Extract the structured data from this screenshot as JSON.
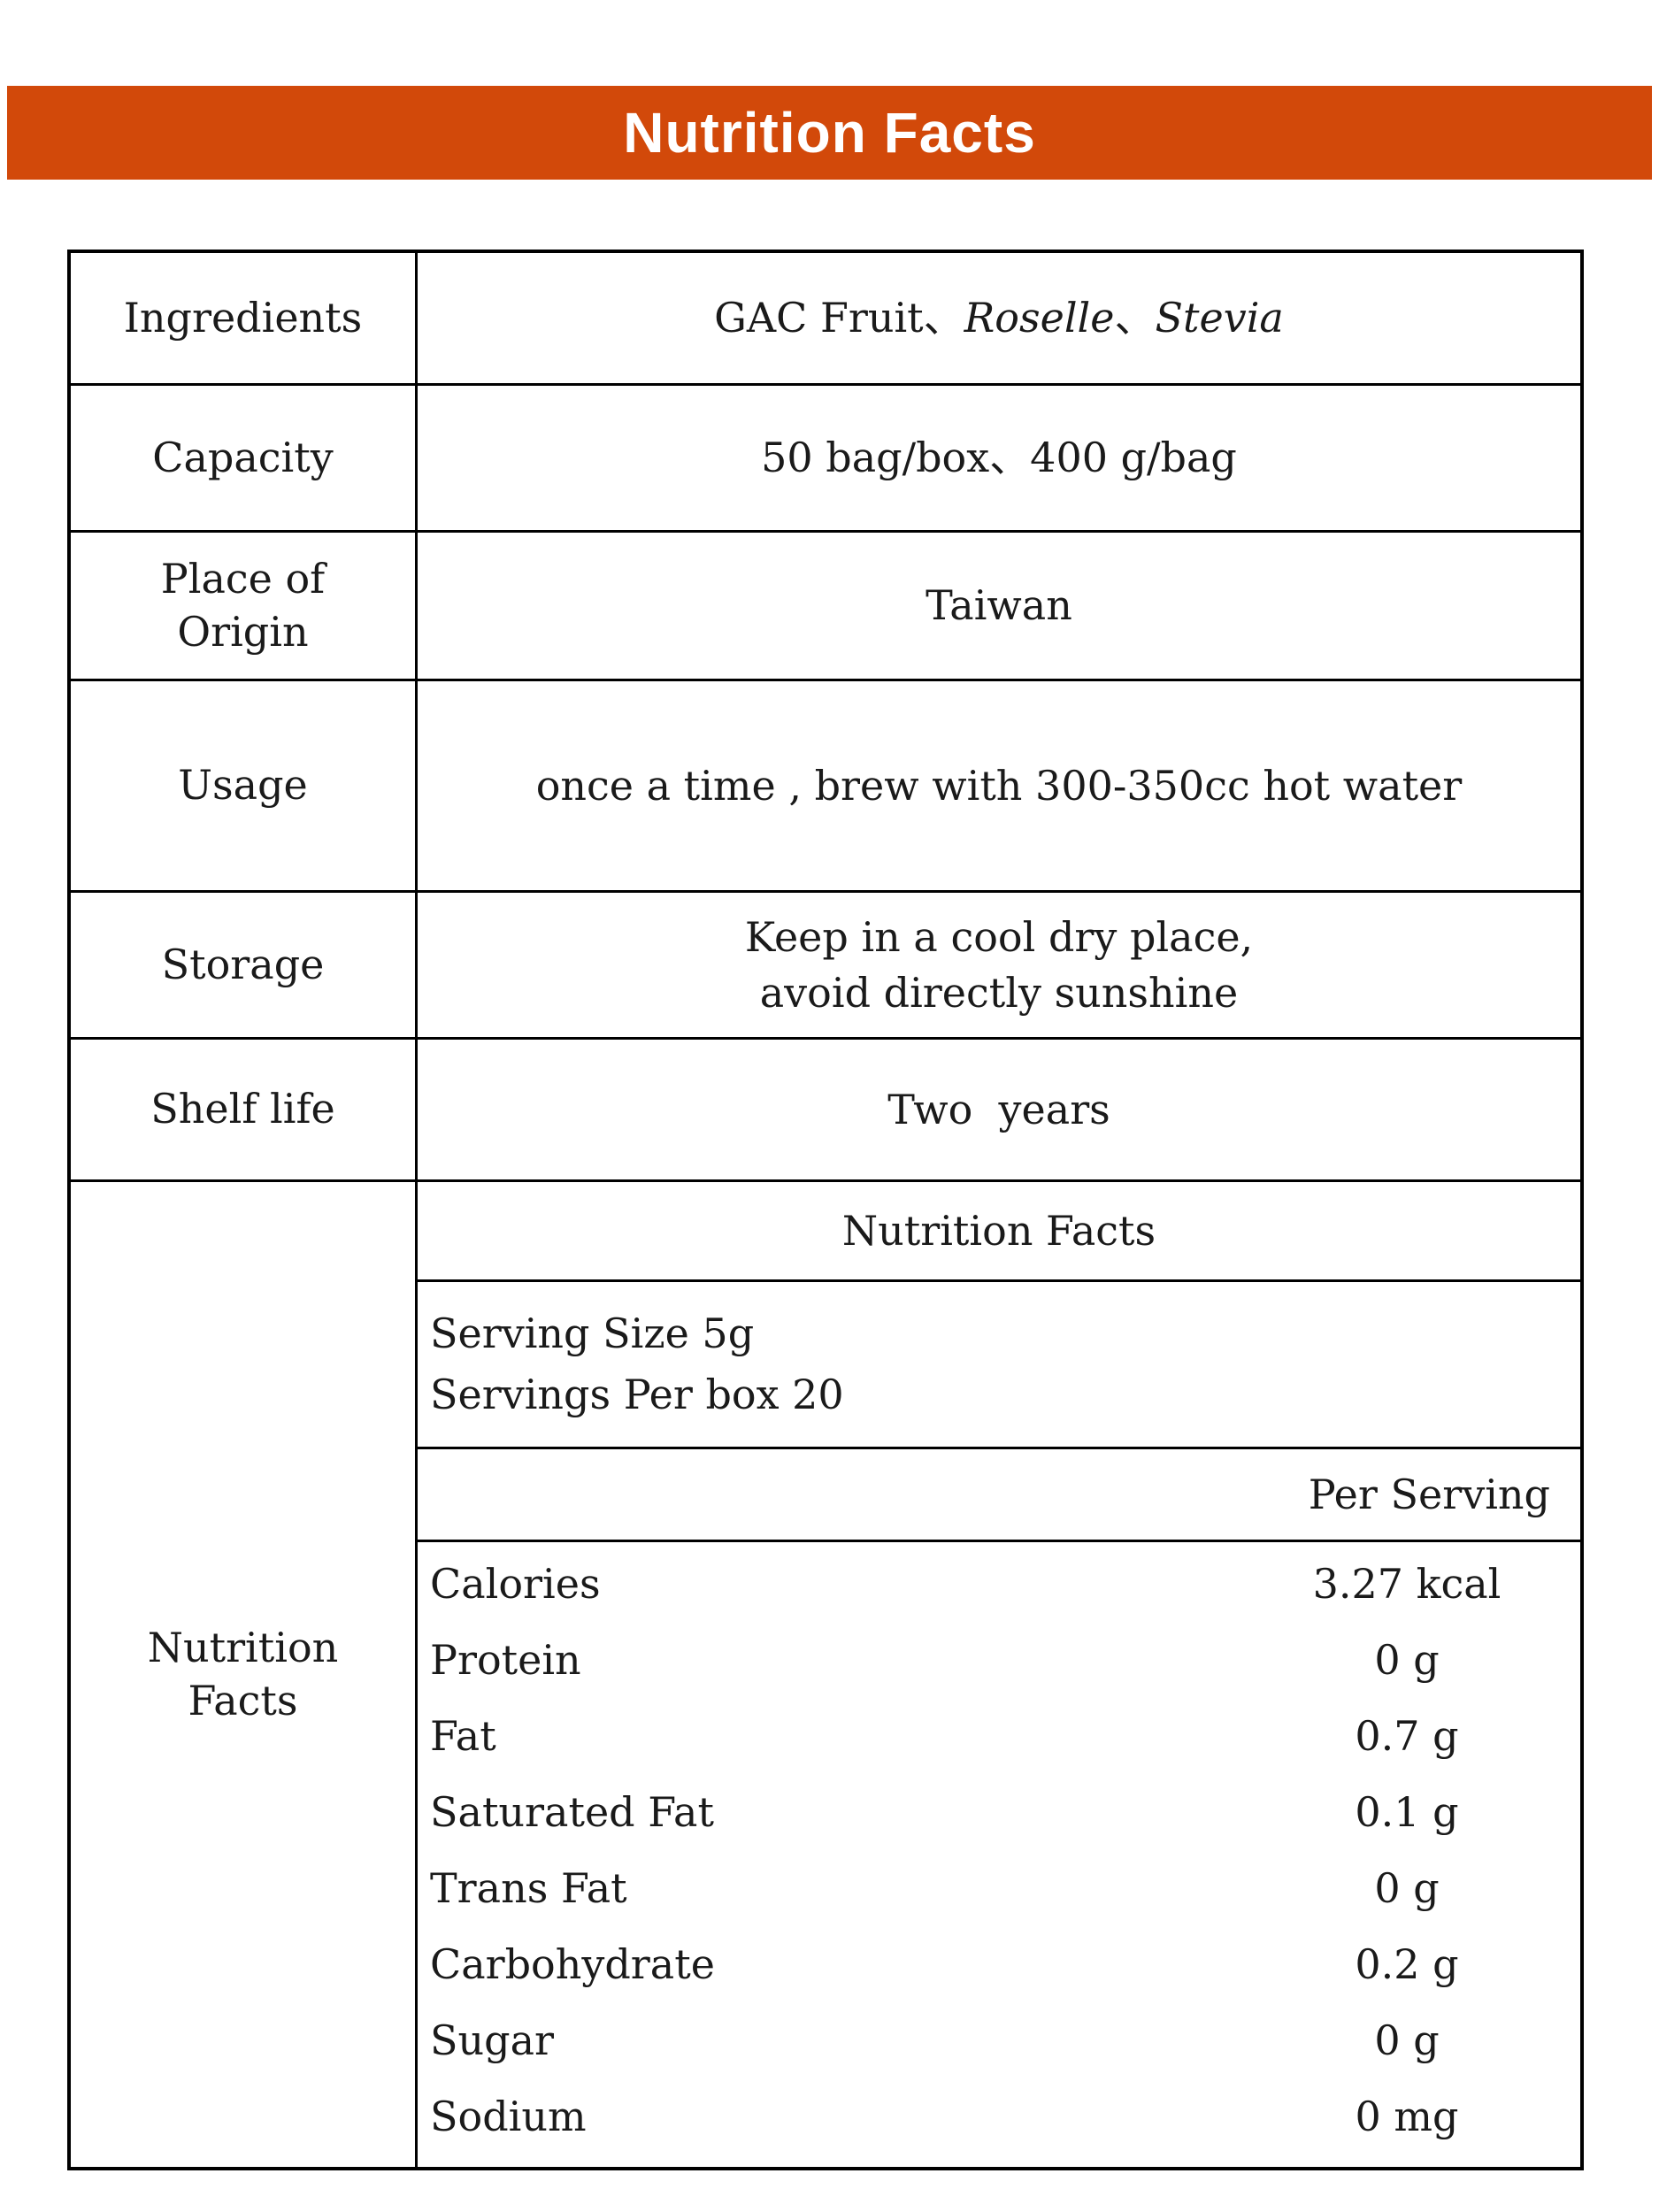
{
  "banner": {
    "title": "Nutrition Facts",
    "bg_color": "#d2490a",
    "text_color": "#ffffff"
  },
  "table": {
    "rows": [
      {
        "label": "Ingredients"
      },
      {
        "label": "Capacity",
        "value": "50 bag/box、400 g/bag"
      },
      {
        "label": "Place of Origin",
        "value": "Taiwan"
      },
      {
        "label": "Usage",
        "value": "once a time , brew with 300-350cc hot water"
      },
      {
        "label": "Storage",
        "value_line1": "Keep in a cool dry place,",
        "value_line2": "avoid directly sunshine"
      },
      {
        "label": "Shelf life",
        "value": "Two  years"
      },
      {
        "label": "Nutrition Facts"
      }
    ],
    "ingredients_parts": [
      {
        "text": "GAC Fruit、",
        "italic": false
      },
      {
        "text": "Roselle",
        "italic": true
      },
      {
        "text": "、",
        "italic": false
      },
      {
        "text": "Stevia",
        "italic": true
      }
    ]
  },
  "nutrition_panel": {
    "title": "Nutrition Facts",
    "serving_size": "Serving Size 5g",
    "servings_per_box": "Servings Per box 20",
    "per_serving_label": "Per Serving",
    "nutrients": [
      {
        "name": "Calories",
        "value": "3.27 kcal"
      },
      {
        "name": "Protein",
        "value": "0 g"
      },
      {
        "name": "Fat",
        "value": "0.7 g"
      },
      {
        "name": "Saturated Fat",
        "value": "0.1 g"
      },
      {
        "name": "Trans Fat",
        "value": "0 g"
      },
      {
        "name": "Carbohydrate",
        "value": "0.2 g"
      },
      {
        "name": "Sugar",
        "value": "0 g"
      },
      {
        "name": "Sodium",
        "value": "0 mg"
      }
    ]
  }
}
